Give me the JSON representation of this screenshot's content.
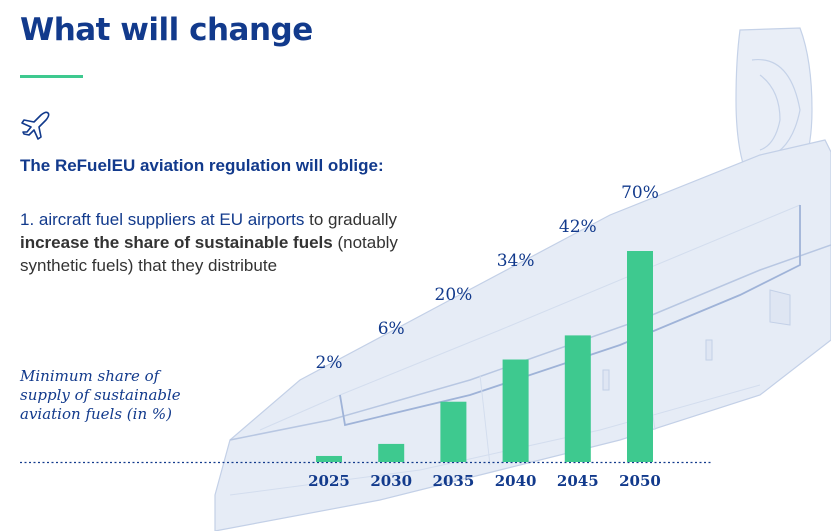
{
  "header": {
    "title": "What will change"
  },
  "intro": "The ReFuelEU aviation regulation will oblige:",
  "point": {
    "number_label": "1. aircraft fuel suppliers at EU airports",
    "text_to": " to gradually ",
    "bold_text": "increase the share of sustainable fuels",
    "text_rest": " (notably synthetic fuels) that they distribute"
  },
  "chart_label": "Minimum share of supply of sustainable aviation fuels (in %)",
  "colors": {
    "title": "#123a8c",
    "accent": "#3ec98f",
    "bar": "#3ec98f",
    "wing": "#c7d4ea"
  },
  "icons": {
    "plane": "airplane-icon"
  },
  "chart_data": {
    "type": "bar",
    "title": "",
    "categories": [
      "2025",
      "2030",
      "2035",
      "2040",
      "2045",
      "2050"
    ],
    "values": [
      2,
      6,
      20,
      34,
      42,
      70
    ],
    "value_labels": [
      "2%",
      "6%",
      "20%",
      "34%",
      "42%",
      "70%"
    ],
    "xlabel": "",
    "ylabel": "Minimum share of supply of sustainable aviation fuels (in %)",
    "ylim": [
      0,
      70
    ],
    "grid": false,
    "legend": "none"
  }
}
